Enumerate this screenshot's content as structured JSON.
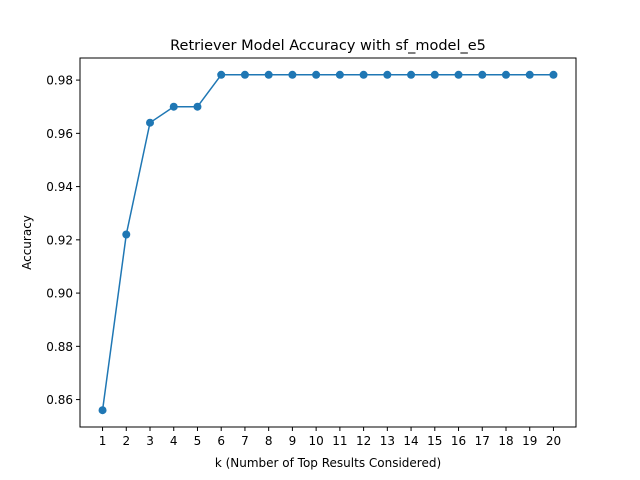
{
  "chart_data": {
    "type": "line",
    "title": "Retriever Model Accuracy with sf_model_e5",
    "xlabel": "k (Number of Top Results Considered)",
    "ylabel": "Accuracy",
    "x": [
      1,
      2,
      3,
      4,
      5,
      6,
      7,
      8,
      9,
      10,
      11,
      12,
      13,
      14,
      15,
      16,
      17,
      18,
      19,
      20
    ],
    "series": [
      {
        "values": [
          0.856,
          0.922,
          0.964,
          0.97,
          0.97,
          0.982,
          0.982,
          0.982,
          0.982,
          0.982,
          0.982,
          0.982,
          0.982,
          0.982,
          0.982,
          0.982,
          0.982,
          0.982,
          0.982,
          0.982
        ],
        "color": "#1f77b4",
        "marker": "circle"
      }
    ],
    "xlim": [
      0.05,
      20.95
    ],
    "ylim": [
      0.8497,
      0.9883
    ],
    "yticks": [
      0.86,
      0.88,
      0.9,
      0.92,
      0.94,
      0.96,
      0.98
    ],
    "ytick_labels": [
      "0.86",
      "0.88",
      "0.90",
      "0.92",
      "0.94",
      "0.96",
      "0.98"
    ],
    "xticks": [
      1,
      2,
      3,
      4,
      5,
      6,
      7,
      8,
      9,
      10,
      11,
      12,
      13,
      14,
      15,
      16,
      17,
      18,
      19,
      20
    ],
    "xtick_labels": [
      "1",
      "2",
      "3",
      "4",
      "5",
      "6",
      "7",
      "8",
      "9",
      "10",
      "11",
      "12",
      "13",
      "14",
      "15",
      "16",
      "17",
      "18",
      "19",
      "20"
    ],
    "grid": false,
    "legend": "none"
  }
}
